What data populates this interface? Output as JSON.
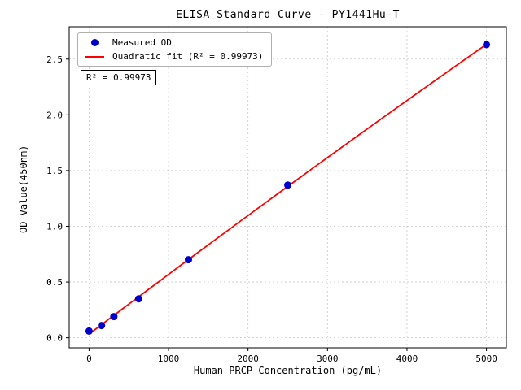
{
  "chart_data": {
    "type": "scatter",
    "title": "ELISA Standard Curve - PY1441Hu-T",
    "xlabel": "Human PRCP Concentration (pg/mL)",
    "ylabel": "OD Value(450nm)",
    "xlim": [
      -250,
      5250
    ],
    "ylim": [
      -0.09,
      2.79
    ],
    "xticks": [
      0,
      1000,
      2000,
      3000,
      4000,
      5000
    ],
    "yticks": [
      0.0,
      0.5,
      1.0,
      1.5,
      2.0,
      2.5
    ],
    "grid": true,
    "legend_position": "upper left",
    "annotation": "R² = 0.99973",
    "series": [
      {
        "name": "Measured OD",
        "type": "scatter",
        "color": "#0000cd",
        "x": [
          0,
          156.25,
          312.5,
          625,
          1250,
          2500,
          5000
        ],
        "y": [
          0.06,
          0.11,
          0.19,
          0.35,
          0.7,
          1.37,
          2.63
        ]
      },
      {
        "name": "Quadratic fit (R² = 0.99973)",
        "type": "line",
        "fit": "quadratic",
        "color": "#ff0000"
      }
    ]
  }
}
